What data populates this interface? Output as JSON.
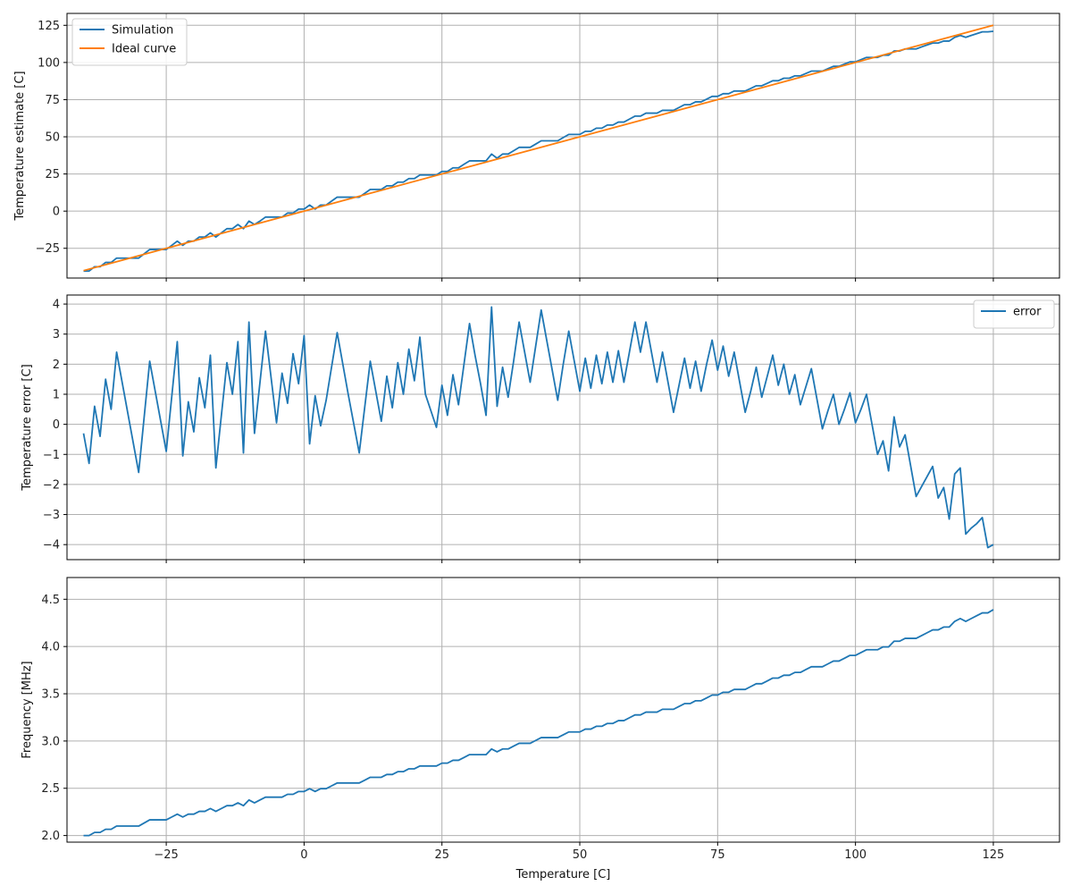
{
  "chart_data": [
    {
      "type": "line",
      "xlabel": "",
      "ylabel": "Temperature estimate [C]",
      "xlim": [
        -43,
        137
      ],
      "ylim": [
        -45,
        133
      ],
      "xticks": [
        -25,
        0,
        25,
        50,
        75,
        100,
        125
      ],
      "yticks": [
        -25,
        0,
        25,
        50,
        75,
        100,
        125
      ],
      "show_xtick_labels": false,
      "grid": true,
      "legend": {
        "position": "top-left"
      },
      "series": [
        {
          "name": "Simulation",
          "color": "#1f77b4",
          "x": [
            -40,
            -39,
            -38,
            -37,
            -36,
            -35,
            -34,
            -33,
            -32,
            -31,
            -30,
            -29,
            -28,
            -27,
            -26,
            -25,
            -24,
            -23,
            -22,
            -21,
            -20,
            -19,
            -18,
            -17,
            -16,
            -15,
            -14,
            -13,
            -12,
            -11,
            -10,
            -9,
            -8,
            -7,
            -6,
            -5,
            -4,
            -3,
            -2,
            -1,
            0,
            1,
            2,
            3,
            4,
            5,
            6,
            7,
            8,
            9,
            10,
            11,
            12,
            13,
            14,
            15,
            16,
            17,
            18,
            19,
            20,
            21,
            22,
            23,
            24,
            25,
            26,
            27,
            28,
            29,
            30,
            31,
            32,
            33,
            34,
            35,
            36,
            37,
            38,
            39,
            40,
            41,
            42,
            43,
            44,
            45,
            46,
            47,
            48,
            49,
            50,
            51,
            52,
            53,
            54,
            55,
            56,
            57,
            58,
            59,
            60,
            61,
            62,
            63,
            64,
            65,
            66,
            67,
            68,
            69,
            70,
            71,
            72,
            73,
            74,
            75,
            76,
            77,
            78,
            79,
            80,
            81,
            82,
            83,
            84,
            85,
            86,
            87,
            88,
            89,
            90,
            91,
            92,
            93,
            94,
            95,
            96,
            97,
            98,
            99,
            100,
            101,
            102,
            103,
            104,
            105,
            106,
            107,
            108,
            109,
            110,
            111,
            112,
            113,
            114,
            115,
            116,
            117,
            118,
            119,
            120,
            121,
            122,
            123,
            124,
            125
          ],
          "y": [
            -40.3,
            -40.3,
            -37.4,
            -37.4,
            -34.5,
            -34.5,
            -31.6,
            -31.6,
            -31.6,
            -31.6,
            -31.6,
            -28.7,
            -25.8,
            -25.8,
            -25.8,
            -25.8,
            -23.0,
            -20.2,
            -23.0,
            -20.2,
            -20.2,
            -17.4,
            -17.4,
            -14.6,
            -17.4,
            -14.6,
            -11.8,
            -11.8,
            -9.0,
            -11.8,
            -6.7,
            -9.0,
            -6.7,
            -4.0,
            -4.0,
            -4.0,
            -4.0,
            -1.3,
            -1.3,
            1.4,
            1.4,
            4.1,
            1.4,
            4.1,
            4.1,
            6.8,
            9.4,
            9.4,
            9.4,
            9.4,
            9.4,
            12.0,
            14.6,
            14.6,
            14.6,
            17.0,
            17.0,
            19.5,
            19.5,
            21.9,
            21.9,
            24.3,
            24.3,
            24.3,
            24.3,
            26.7,
            26.7,
            29.1,
            29.1,
            31.5,
            33.8,
            33.8,
            33.8,
            33.8,
            38.4,
            35.6,
            38.4,
            38.4,
            40.6,
            42.9,
            42.9,
            42.9,
            45.1,
            47.3,
            47.3,
            47.3,
            47.3,
            49.5,
            51.6,
            51.6,
            51.6,
            53.7,
            53.7,
            55.8,
            55.8,
            57.9,
            57.9,
            59.9,
            59.9,
            61.9,
            63.9,
            63.9,
            65.9,
            65.9,
            65.9,
            67.8,
            67.8,
            67.8,
            69.7,
            71.6,
            71.6,
            73.5,
            73.5,
            75.3,
            77.2,
            77.2,
            79.0,
            79.0,
            80.8,
            80.8,
            80.8,
            82.5,
            84.3,
            84.3,
            86.0,
            87.7,
            87.7,
            89.4,
            89.4,
            91.0,
            91.0,
            92.6,
            94.2,
            94.2,
            94.2,
            95.8,
            97.4,
            97.4,
            98.9,
            100.4,
            100.4,
            101.9,
            103.4,
            103.4,
            103.4,
            104.9,
            104.9,
            107.7,
            107.7,
            109.1,
            109.1,
            109.1,
            110.5,
            111.8,
            113.1,
            113.1,
            114.4,
            114.4,
            116.9,
            118.2,
            116.9,
            118.2,
            119.4,
            120.6,
            120.6,
            121.0
          ]
        },
        {
          "name": "Ideal curve",
          "color": "#ff7f0e",
          "x": [
            -40,
            125
          ],
          "y": [
            -40,
            125
          ]
        }
      ]
    },
    {
      "type": "line",
      "xlabel": "",
      "ylabel": "Temperature error [C]",
      "xlim": [
        -43,
        137
      ],
      "ylim": [
        -4.5,
        4.3
      ],
      "xticks": [
        -25,
        0,
        25,
        50,
        75,
        100,
        125
      ],
      "yticks": [
        -4,
        -3,
        -2,
        -1,
        0,
        1,
        2,
        3,
        4
      ],
      "show_xtick_labels": false,
      "grid": true,
      "legend": {
        "position": "top-right"
      },
      "series": [
        {
          "name": "error",
          "color": "#1f77b4",
          "x": [
            -40,
            -39,
            -38,
            -37,
            -36,
            -35,
            -34,
            -30,
            -28,
            -25,
            -23,
            -22,
            -21,
            -20,
            -19,
            -18,
            -17,
            -16,
            -14,
            -13,
            -12,
            -11,
            -10,
            -9,
            -7,
            -5,
            -4,
            -3,
            -2,
            -1,
            0,
            1,
            2,
            3,
            4,
            6,
            8,
            10,
            12,
            14,
            15,
            16,
            17,
            18,
            19,
            20,
            21,
            22,
            24,
            25,
            26,
            27,
            28,
            29,
            30,
            31,
            32,
            33,
            34,
            35,
            36,
            37,
            38,
            39,
            40,
            41,
            42,
            43,
            44,
            45,
            46,
            47,
            48,
            49,
            50,
            51,
            52,
            53,
            54,
            55,
            56,
            57,
            58,
            59,
            60,
            61,
            62,
            63,
            64,
            65,
            66,
            67,
            68,
            69,
            70,
            71,
            72,
            73,
            74,
            75,
            76,
            77,
            78,
            79,
            80,
            81,
            82,
            83,
            84,
            85,
            86,
            87,
            88,
            89,
            90,
            91,
            92,
            93,
            94,
            95,
            96,
            97,
            98,
            99,
            100,
            101,
            102,
            103,
            104,
            105,
            106,
            107,
            108,
            109,
            111,
            114,
            115,
            116,
            117,
            118,
            119,
            120,
            121,
            122,
            123,
            124,
            125
          ],
          "y": [
            -0.3,
            -1.3,
            0.6,
            -0.4,
            1.5,
            0.5,
            2.4,
            -1.6,
            2.1,
            -0.9,
            2.75,
            -1.05,
            0.75,
            -0.25,
            1.55,
            0.55,
            2.3,
            -1.45,
            2.05,
            1.0,
            2.75,
            -0.95,
            3.4,
            -0.3,
            3.1,
            0.05,
            1.7,
            0.7,
            2.35,
            1.35,
            2.95,
            -0.65,
            0.95,
            -0.05,
            0.8,
            3.05,
            1.0,
            -0.95,
            2.1,
            0.1,
            1.6,
            0.55,
            2.05,
            1.0,
            2.5,
            1.45,
            2.9,
            1.0,
            -0.1,
            1.3,
            0.3,
            1.65,
            0.65,
            2.0,
            3.35,
            2.3,
            1.35,
            0.3,
            3.9,
            0.6,
            1.9,
            0.9,
            2.1,
            3.4,
            2.4,
            1.4,
            2.6,
            3.8,
            2.8,
            1.8,
            0.8,
            2.0,
            3.1,
            2.1,
            1.1,
            2.2,
            1.2,
            2.3,
            1.35,
            2.4,
            1.4,
            2.45,
            1.4,
            2.4,
            3.4,
            2.4,
            3.4,
            2.4,
            1.4,
            2.4,
            1.4,
            0.4,
            1.3,
            2.2,
            1.2,
            2.1,
            1.1,
            2.0,
            2.8,
            1.8,
            2.6,
            1.6,
            2.4,
            1.4,
            0.4,
            1.1,
            1.9,
            0.9,
            1.6,
            2.3,
            1.3,
            2.0,
            1.0,
            1.65,
            0.65,
            1.25,
            1.85,
            0.85,
            -0.15,
            0.45,
            1.0,
            0.0,
            0.5,
            1.05,
            0.05,
            0.5,
            1.0,
            0.0,
            -1.0,
            -0.55,
            -1.55,
            0.25,
            -0.75,
            -0.35,
            -2.4,
            -1.4,
            -2.45,
            -2.1,
            -3.15,
            -1.65,
            -1.45,
            -3.65,
            -3.45,
            -3.3,
            -3.1,
            -4.1,
            -4.0
          ]
        }
      ]
    },
    {
      "type": "line",
      "xlabel": "Temperature [C]",
      "ylabel": "Frequency [MHz]",
      "xlim": [
        -43,
        137
      ],
      "ylim": [
        1.93,
        4.73
      ],
      "xticks": [
        -25,
        0,
        25,
        50,
        75,
        100,
        125
      ],
      "yticks": [
        2.0,
        2.5,
        3.0,
        3.5,
        4.0,
        4.5
      ],
      "show_xtick_labels": true,
      "grid": true,
      "legend": null,
      "series": [
        {
          "name": "",
          "color": "#1f77b4",
          "x": [
            -40,
            -39,
            -38,
            -37,
            -36,
            -35,
            -34,
            -33,
            -32,
            -31,
            -30,
            -29,
            -28,
            -27,
            -26,
            -25,
            -24,
            -23,
            -22,
            -21,
            -20,
            -19,
            -18,
            -17,
            -16,
            -15,
            -14,
            -13,
            -12,
            -11,
            -10,
            -9,
            -8,
            -7,
            -6,
            -5,
            -4,
            -3,
            -2,
            -1,
            0,
            1,
            2,
            3,
            4,
            5,
            6,
            7,
            8,
            9,
            10,
            11,
            12,
            13,
            14,
            15,
            16,
            17,
            18,
            19,
            20,
            21,
            22,
            23,
            24,
            25,
            26,
            27,
            28,
            29,
            30,
            31,
            32,
            33,
            34,
            35,
            36,
            37,
            38,
            39,
            40,
            41,
            42,
            43,
            44,
            45,
            46,
            47,
            48,
            49,
            50,
            51,
            52,
            53,
            54,
            55,
            56,
            57,
            58,
            59,
            60,
            61,
            62,
            63,
            64,
            65,
            66,
            67,
            68,
            69,
            70,
            71,
            72,
            73,
            74,
            75,
            76,
            77,
            78,
            79,
            80,
            81,
            82,
            83,
            84,
            85,
            86,
            87,
            88,
            89,
            90,
            91,
            92,
            93,
            94,
            95,
            96,
            97,
            98,
            99,
            100,
            101,
            102,
            103,
            104,
            105,
            106,
            107,
            108,
            109,
            110,
            111,
            112,
            113,
            114,
            115,
            116,
            117,
            118,
            119,
            120,
            121,
            122,
            123,
            124,
            125
          ],
          "y": [
            2.0,
            2.0,
            2.033,
            2.033,
            2.066,
            2.066,
            2.1,
            2.1,
            2.1,
            2.1,
            2.1,
            2.133,
            2.166,
            2.166,
            2.166,
            2.166,
            2.196,
            2.226,
            2.196,
            2.226,
            2.226,
            2.256,
            2.256,
            2.286,
            2.256,
            2.286,
            2.316,
            2.316,
            2.346,
            2.316,
            2.376,
            2.346,
            2.376,
            2.406,
            2.406,
            2.406,
            2.406,
            2.436,
            2.436,
            2.466,
            2.466,
            2.496,
            2.466,
            2.496,
            2.496,
            2.526,
            2.556,
            2.556,
            2.556,
            2.556,
            2.556,
            2.586,
            2.616,
            2.616,
            2.616,
            2.646,
            2.646,
            2.676,
            2.676,
            2.706,
            2.706,
            2.736,
            2.736,
            2.736,
            2.736,
            2.766,
            2.766,
            2.796,
            2.796,
            2.826,
            2.856,
            2.856,
            2.856,
            2.856,
            2.916,
            2.886,
            2.916,
            2.916,
            2.946,
            2.976,
            2.976,
            2.976,
            3.006,
            3.036,
            3.036,
            3.036,
            3.036,
            3.066,
            3.096,
            3.096,
            3.096,
            3.126,
            3.126,
            3.156,
            3.156,
            3.186,
            3.186,
            3.216,
            3.216,
            3.246,
            3.276,
            3.276,
            3.306,
            3.306,
            3.306,
            3.336,
            3.336,
            3.336,
            3.366,
            3.396,
            3.396,
            3.426,
            3.426,
            3.456,
            3.486,
            3.486,
            3.516,
            3.516,
            3.546,
            3.546,
            3.546,
            3.576,
            3.606,
            3.606,
            3.636,
            3.666,
            3.666,
            3.696,
            3.696,
            3.726,
            3.726,
            3.756,
            3.786,
            3.786,
            3.786,
            3.816,
            3.846,
            3.846,
            3.876,
            3.906,
            3.906,
            3.936,
            3.966,
            3.966,
            3.966,
            3.996,
            3.996,
            4.056,
            4.056,
            4.086,
            4.086,
            4.086,
            4.116,
            4.146,
            4.176,
            4.176,
            4.206,
            4.206,
            4.266,
            4.296,
            4.266,
            4.296,
            4.326,
            4.356,
            4.356,
            4.39
          ]
        }
      ]
    }
  ],
  "colors": {
    "axes_edge": "#000000",
    "grid": "#b0b0b0",
    "legend_edge": "#cccccc"
  }
}
